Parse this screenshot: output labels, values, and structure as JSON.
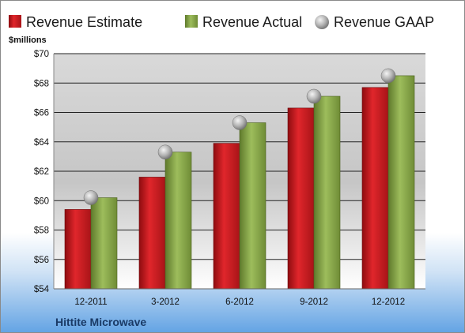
{
  "chart_data": {
    "type": "bar",
    "categories": [
      "12-2011",
      "3-2012",
      "6-2012",
      "9-2012",
      "12-2012"
    ],
    "series": [
      {
        "name": "Revenue Estimate",
        "kind": "bar",
        "color": "#c81a1f",
        "values": [
          59.4,
          61.6,
          63.9,
          66.3,
          67.7
        ]
      },
      {
        "name": "Revenue Actual",
        "kind": "bar",
        "color": "#8caa4e",
        "values": [
          60.2,
          63.3,
          65.3,
          67.1,
          68.5
        ]
      },
      {
        "name": "Revenue GAAP",
        "kind": "marker",
        "color": "#b8b8b8",
        "values": [
          60.2,
          63.3,
          65.3,
          67.1,
          68.5
        ]
      }
    ],
    "ylim": [
      54,
      70
    ],
    "yticks": [
      54,
      56,
      58,
      60,
      62,
      64,
      66,
      68,
      70
    ],
    "ytick_labels": [
      "$54",
      "$56",
      "$58",
      "$60",
      "$62",
      "$64",
      "$66",
      "$68",
      "$70"
    ],
    "ylabel": "$millions",
    "xlabel": "",
    "title": "",
    "grid": true,
    "legend_position": "top"
  },
  "footer": {
    "company": "Hittite Microwave"
  }
}
